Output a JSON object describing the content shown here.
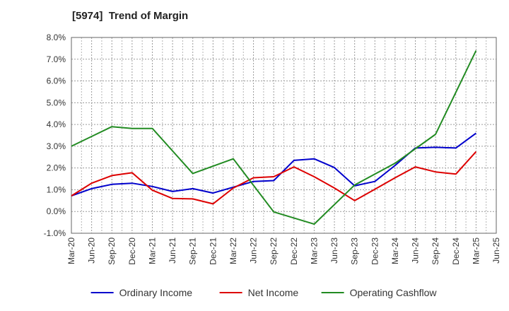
{
  "chart_data": {
    "type": "line",
    "title": "[5974]  Trend of Margin",
    "xlabel": "",
    "ylabel": "",
    "x_ticks": [
      "Mar-20",
      "Jun-20",
      "Sep-20",
      "Dec-20",
      "Mar-21",
      "Jun-21",
      "Sep-21",
      "Dec-21",
      "Mar-22",
      "Jun-22",
      "Sep-22",
      "Dec-22",
      "Mar-23",
      "Jun-23",
      "Sep-23",
      "Dec-23",
      "Mar-24",
      "Jun-24",
      "Sep-24",
      "Dec-24",
      "Mar-25",
      "Jun-25"
    ],
    "y_ticks": [
      "-1.0%",
      "0.0%",
      "1.0%",
      "2.0%",
      "3.0%",
      "4.0%",
      "5.0%",
      "6.0%",
      "7.0%",
      "8.0%"
    ],
    "ylim": [
      -1.0,
      8.0
    ],
    "grid": true,
    "legend_position": "bottom",
    "series": [
      {
        "name": "Ordinary Income",
        "color": "#0000cc",
        "x": [
          "Mar-20",
          "Jun-20",
          "Sep-20",
          "Dec-20",
          "Mar-21",
          "Jun-21",
          "Sep-21",
          "Dec-21",
          "Mar-22",
          "Jun-22",
          "Sep-22",
          "Dec-22",
          "Mar-23",
          "Jun-23",
          "Sep-23",
          "Dec-23",
          "Mar-24",
          "Jun-24",
          "Sep-24",
          "Dec-24",
          "Mar-25"
        ],
        "values": [
          0.72,
          1.05,
          1.25,
          1.3,
          1.15,
          0.92,
          1.05,
          0.85,
          1.12,
          1.38,
          1.42,
          2.35,
          2.42,
          2.02,
          1.18,
          1.38,
          2.12,
          2.92,
          2.95,
          2.92,
          3.6
        ]
      },
      {
        "name": "Net Income",
        "color": "#dd0000",
        "x": [
          "Mar-20",
          "Jun-20",
          "Sep-20",
          "Dec-20",
          "Mar-21",
          "Jun-21",
          "Sep-21",
          "Dec-21",
          "Mar-22",
          "Jun-22",
          "Sep-22",
          "Dec-22",
          "Mar-23",
          "Jun-23",
          "Sep-23",
          "Dec-23",
          "Mar-24",
          "Jun-24",
          "Sep-24",
          "Dec-24",
          "Mar-25"
        ],
        "values": [
          0.72,
          1.3,
          1.65,
          1.78,
          0.98,
          0.6,
          0.58,
          0.35,
          1.08,
          1.55,
          1.6,
          2.05,
          1.6,
          1.08,
          0.5,
          1.02,
          1.55,
          2.05,
          1.82,
          1.72,
          2.75
        ]
      },
      {
        "name": "Operating Cashflow",
        "color": "#228B22",
        "x": [
          "Mar-20",
          "Sep-20",
          "Dec-20",
          "Mar-21",
          "Sep-21",
          "Mar-22",
          "Sep-22",
          "Mar-23",
          "Sep-23",
          "Mar-24",
          "Sep-24",
          "Mar-25"
        ],
        "values": [
          3.0,
          3.9,
          3.82,
          3.82,
          1.75,
          2.42,
          -0.02,
          -0.58,
          1.22,
          2.22,
          3.55,
          7.4
        ]
      }
    ]
  }
}
